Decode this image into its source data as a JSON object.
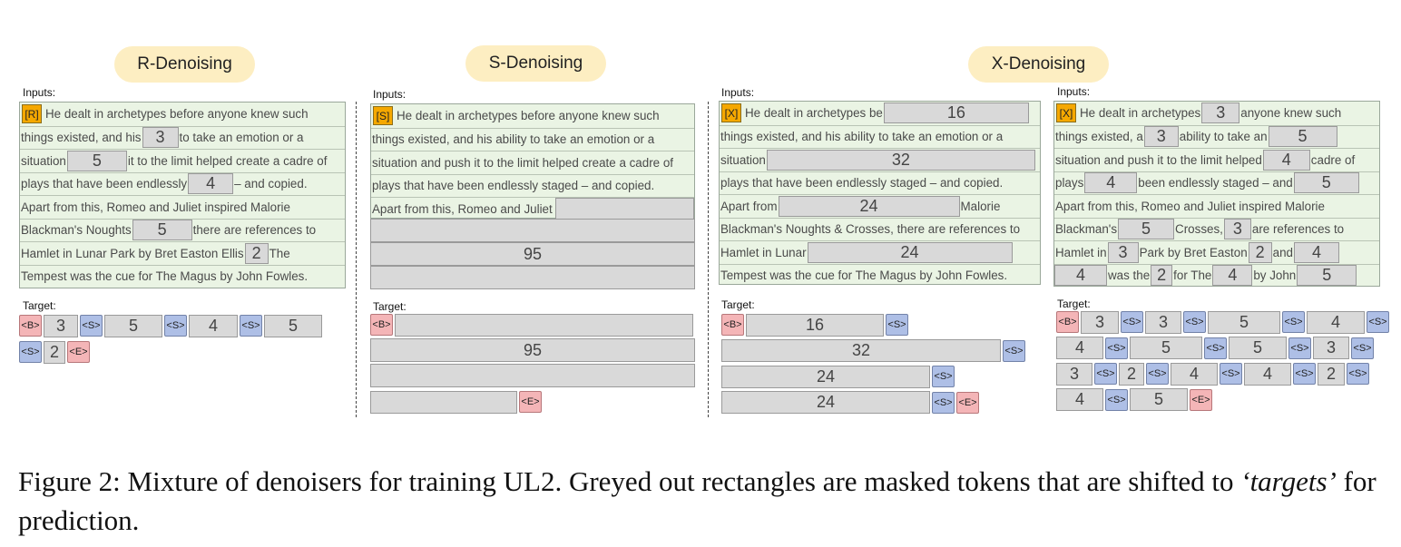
{
  "panels": {
    "r": {
      "title": "R-Denoising",
      "inputs_label": "Inputs:",
      "target_label": "Target:",
      "tag": "[R]",
      "rows": [
        [
          {
            "t": "He dealt in archetypes before anyone knew such"
          }
        ],
        [
          {
            "t": "things existed, and his"
          },
          {
            "m": "3",
            "w": 40
          },
          {
            "t": "to take an emotion or a"
          }
        ],
        [
          {
            "t": "situation"
          },
          {
            "m": "5",
            "w": 66
          },
          {
            "t": "it to the limit helped create a cadre of"
          }
        ],
        [
          {
            "t": "plays that have been endlessly"
          },
          {
            "m": "4",
            "w": 50
          },
          {
            "t": "– and copied."
          }
        ],
        [
          {
            "t": "Apart from  this, Romeo and Juliet inspired Malorie"
          }
        ],
        [
          {
            "t": "Blackman's Noughts"
          },
          {
            "m": "5",
            "w": 66
          },
          {
            "t": "there are references to"
          }
        ],
        [
          {
            "t": "Hamlet in Lunar Park by Bret Easton Ellis"
          },
          {
            "m": "2",
            "w": 26
          },
          {
            "t": "The"
          }
        ],
        [
          {
            "t": "Tempest was the cue for The Magus by John Fowles."
          }
        ]
      ],
      "target_rows": [
        [
          {
            "s": "<B>",
            "k": "b"
          },
          {
            "m": "3",
            "w": 38
          },
          {
            "s": "<S>",
            "k": "s"
          },
          {
            "m": "5",
            "w": 64
          },
          {
            "s": "<S>",
            "k": "s"
          },
          {
            "m": "4",
            "w": 54
          },
          {
            "s": "<S>",
            "k": "s"
          },
          {
            "m": "5",
            "w": 64
          }
        ],
        [
          {
            "s": "<S>",
            "k": "s"
          },
          {
            "m": "2",
            "w": 24
          },
          {
            "s": "<E>",
            "k": "e"
          }
        ]
      ]
    },
    "s": {
      "title": "S-Denoising",
      "inputs_label": "Inputs:",
      "target_label": "Target:",
      "tag": "[S]",
      "rows": [
        "He dealt in archetypes before anyone knew such",
        "things existed, and his ability to take an emotion or a",
        "situation and push it to the limit helped create a cadre of",
        "plays that have been endlessly staged – and copied.",
        "Apart from  this, Romeo and Juliet"
      ],
      "masked_value": "95",
      "target_value": "95",
      "b": "<B>",
      "e": "<E>"
    },
    "x1": {
      "title": "X-Denoising",
      "inputs_label": "Inputs:",
      "target_label": "Target:",
      "tag": "[X]",
      "rows": [
        [
          {
            "t": "He dealt in archetypes be"
          },
          {
            "m": "16",
            "w": 160
          }
        ],
        [
          {
            "t": "things existed, and his ability to take an emotion or a"
          }
        ],
        [
          {
            "t": "situation"
          },
          {
            "m": "32",
            "w": 296
          }
        ],
        [
          {
            "t": "plays that have been endlessly staged – and copied."
          }
        ],
        [
          {
            "t": "Apart from"
          },
          {
            "m": "24",
            "w": 200
          },
          {
            "t": "Malorie"
          }
        ],
        [
          {
            "t": "Blackman's Noughts & Crosses, there are references to"
          }
        ],
        [
          {
            "t": "Hamlet in Lunar"
          },
          {
            "m": "24",
            "w": 226
          }
        ],
        [
          {
            "t": "Tempest was the cue for The Magus by John Fowles."
          }
        ]
      ],
      "target_rows": [
        [
          {
            "s": "<B>",
            "k": "b"
          },
          {
            "m": "16",
            "w": 152
          },
          {
            "s": "<S>",
            "k": "s"
          }
        ],
        [
          {
            "m": "32",
            "w": 308
          },
          {
            "s": "<S>",
            "k": "s"
          }
        ],
        [
          {
            "m": "24",
            "w": 230
          },
          {
            "s": "<S>",
            "k": "s"
          }
        ],
        [
          {
            "m": "24",
            "w": 230
          },
          {
            "s": "<S>",
            "k": "s"
          },
          {
            "s": "<E>",
            "k": "e"
          }
        ]
      ]
    },
    "x2": {
      "inputs_label": "Inputs:",
      "target_label": "Target:",
      "tag": "[X]",
      "rows": [
        [
          {
            "t": "He dealt in archetypes"
          },
          {
            "m": "3",
            "w": 42
          },
          {
            "t": "anyone knew such"
          }
        ],
        [
          {
            "t": "things existed, a"
          },
          {
            "m": "3",
            "w": 38
          },
          {
            "t": "ability to take an"
          },
          {
            "m": "5",
            "w": 76
          }
        ],
        [
          {
            "t": "situation and push it to the limit helped"
          },
          {
            "m": "4",
            "w": 52
          },
          {
            "t": "cadre of"
          }
        ],
        [
          {
            "t": "plays"
          },
          {
            "m": "4",
            "w": 58
          },
          {
            "t": "been endlessly staged – and"
          },
          {
            "m": "5",
            "w": 72
          }
        ],
        [
          {
            "t": "Apart from  this, Romeo and Juliet inspired Malorie"
          }
        ],
        [
          {
            "t": "Blackman's"
          },
          {
            "m": "5",
            "w": 62
          },
          {
            "t": "Crosses,"
          },
          {
            "m": "3",
            "w": 30
          },
          {
            "t": "are references to"
          }
        ],
        [
          {
            "t": "Hamlet in"
          },
          {
            "m": "3",
            "w": 34
          },
          {
            "t": "Park by Bret Easton"
          },
          {
            "m": "2",
            "w": 26
          },
          {
            "t": "and"
          },
          {
            "m": "4",
            "w": 50
          }
        ],
        [
          {
            "m": "4",
            "w": 58
          },
          {
            "t": "was the"
          },
          {
            "m": "2",
            "w": 24
          },
          {
            "t": "for The"
          },
          {
            "m": "4",
            "w": 44
          },
          {
            "t": "by John"
          },
          {
            "m": "5",
            "w": 66
          }
        ]
      ],
      "target_rows": [
        [
          {
            "s": "<B>",
            "k": "b"
          },
          {
            "m": "3",
            "w": 42
          },
          {
            "s": "<S>",
            "k": "s"
          },
          {
            "m": "3",
            "w": 40
          },
          {
            "s": "<S>",
            "k": "s"
          },
          {
            "m": "5",
            "w": 80
          },
          {
            "s": "<S>",
            "k": "s"
          },
          {
            "m": "4",
            "w": 64
          },
          {
            "s": "<S>",
            "k": "s"
          }
        ],
        [
          {
            "m": "4",
            "w": 52
          },
          {
            "s": "<S>",
            "k": "s"
          },
          {
            "m": "5",
            "w": 80
          },
          {
            "s": "<S>",
            "k": "s"
          },
          {
            "m": "5",
            "w": 64
          },
          {
            "s": "<S>",
            "k": "s"
          },
          {
            "m": "3",
            "w": 40
          },
          {
            "s": "<S>",
            "k": "s"
          }
        ],
        [
          {
            "m": "3",
            "w": 40
          },
          {
            "s": "<S>",
            "k": "s"
          },
          {
            "m": "2",
            "w": 28
          },
          {
            "s": "<S>",
            "k": "s"
          },
          {
            "m": "4",
            "w": 52
          },
          {
            "s": "<S>",
            "k": "s"
          },
          {
            "m": "4",
            "w": 52
          },
          {
            "s": "<S>",
            "k": "s"
          },
          {
            "m": "2",
            "w": 30
          },
          {
            "s": "<S>",
            "k": "s"
          }
        ],
        [
          {
            "m": "4",
            "w": 52
          },
          {
            "s": "<S>",
            "k": "s"
          },
          {
            "m": "5",
            "w": 64
          },
          {
            "s": "<E>",
            "k": "e"
          }
        ]
      ]
    }
  },
  "caption": {
    "prefix": "Figure 2: Mixture of denoisers for training UL2. Greyed out rectangles are masked tokens that are shifted to ",
    "emph": "‘targets’",
    "suffix": " for prediction."
  }
}
